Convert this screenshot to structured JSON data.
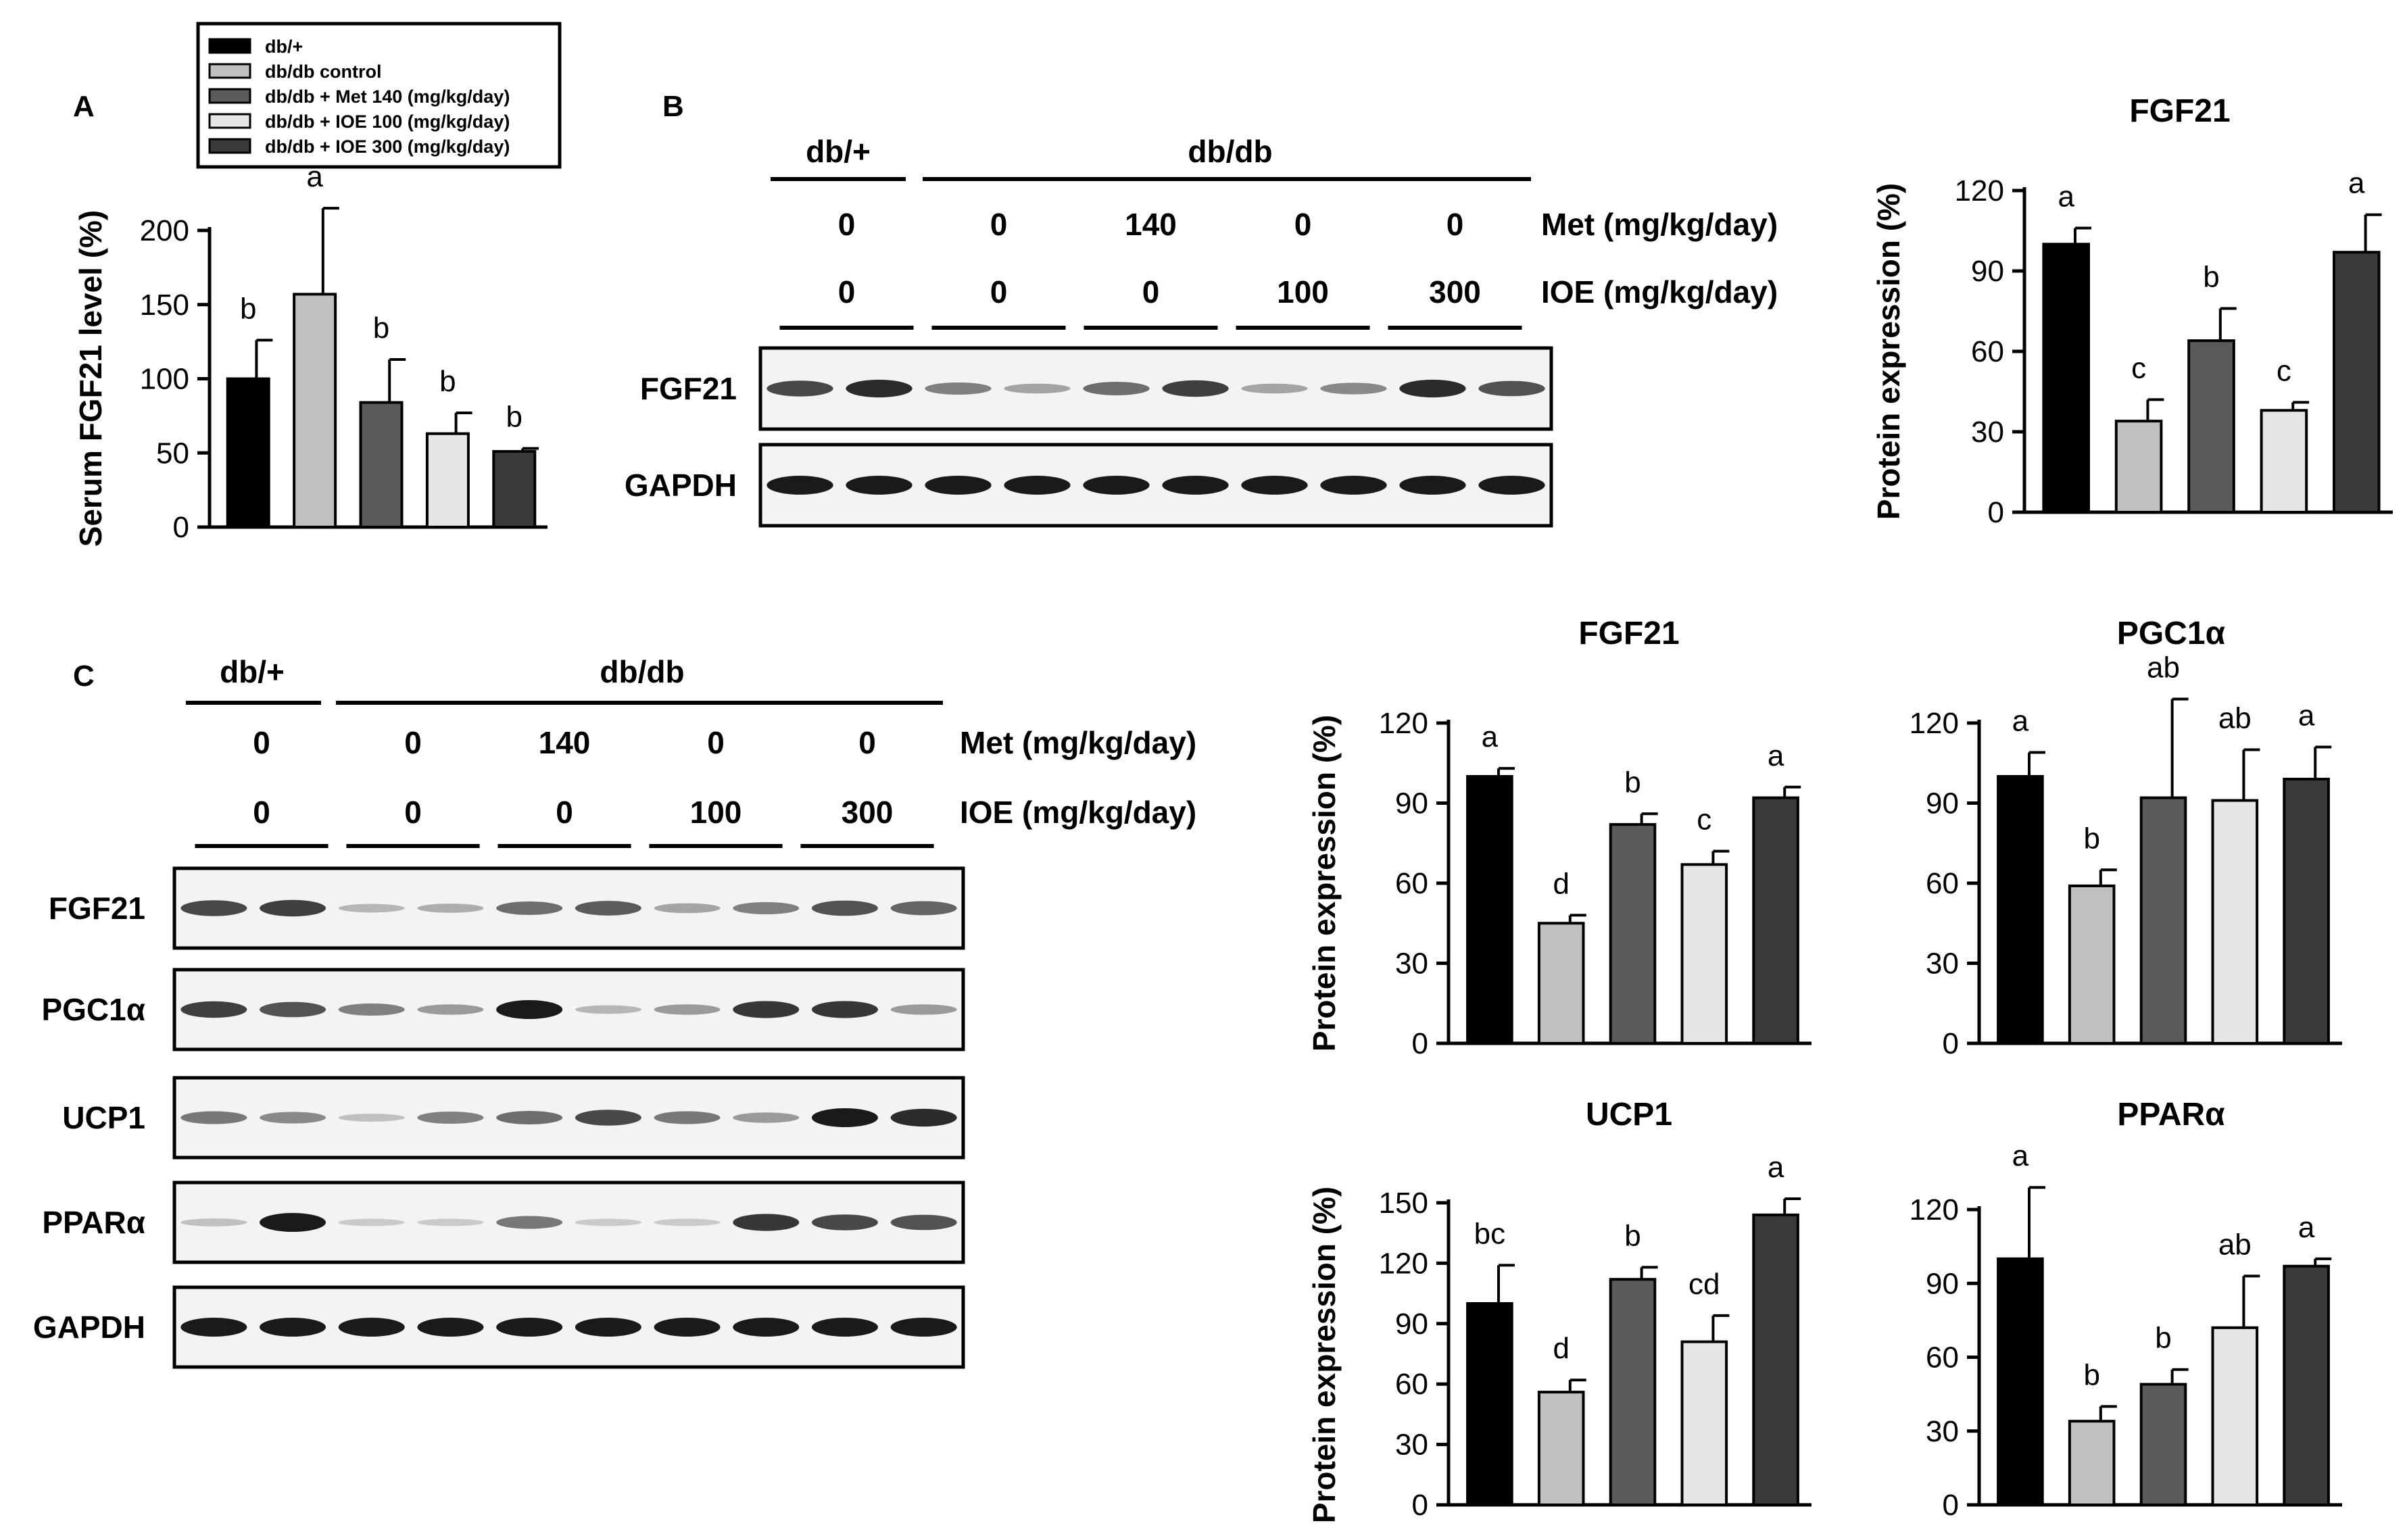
{
  "colors": {
    "g1": "#000000",
    "g2": "#c0c0c0",
    "g3": "#5a5a5a",
    "g4": "#e6e6e6",
    "g5": "#3a3a3a",
    "blot_bg": "#f3f3f3",
    "band": "#1a1a1a"
  },
  "panels": {
    "A": "A",
    "B": "B",
    "C": "C"
  },
  "legend": [
    "db/+",
    "db/db  control",
    "db/db + Met 140 (mg/kg/day)",
    "db/db + IOE  100 (mg/kg/day)",
    "db/db + IOE  300 (mg/kg/day)"
  ],
  "blots": {
    "B": {
      "group1": "db/+",
      "group2": "db/db",
      "met_values": [
        "0",
        "0",
        "140",
        "0",
        "0"
      ],
      "ioe_values": [
        "0",
        "0",
        "0",
        "100",
        "300"
      ],
      "met_label": "Met (mg/kg/day)",
      "ioe_label": "IOE (mg/kg/day)",
      "rows": [
        {
          "label": "FGF21",
          "bands": [
            0.75,
            0.9,
            0.45,
            0.25,
            0.55,
            0.8,
            0.25,
            0.4,
            0.9,
            0.7
          ]
        },
        {
          "label": "GAPDH",
          "bands": [
            1,
            1,
            1,
            1,
            1,
            1,
            1,
            1,
            1,
            1
          ]
        }
      ]
    },
    "C": {
      "group1": "db/+",
      "group2": "db/db",
      "met_values": [
        "0",
        "0",
        "140",
        "0",
        "0"
      ],
      "ioe_values": [
        "0",
        "0",
        "0",
        "100",
        "300"
      ],
      "met_label": "Met (mg/kg/day)",
      "ioe_label": "IOE (mg/kg/day)",
      "rows": [
        {
          "label": "FGF21",
          "bands": [
            0.75,
            0.8,
            0.15,
            0.2,
            0.55,
            0.65,
            0.25,
            0.45,
            0.7,
            0.6
          ]
        },
        {
          "label": "PGC1α",
          "bands": [
            0.8,
            0.7,
            0.45,
            0.3,
            1,
            0.15,
            0.3,
            0.85,
            0.85,
            0.3
          ]
        },
        {
          "label": "UCP1",
          "bands": [
            0.5,
            0.4,
            0.1,
            0.45,
            0.55,
            0.75,
            0.5,
            0.3,
            1,
            0.9
          ]
        },
        {
          "label": "PPARα",
          "bands": [
            0.1,
            1,
            0.05,
            0.05,
            0.5,
            0.05,
            0.05,
            0.85,
            0.75,
            0.7
          ]
        },
        {
          "label": "GAPDH",
          "bands": [
            1,
            1,
            1,
            1,
            1,
            1,
            1,
            1,
            1,
            1
          ]
        }
      ]
    }
  },
  "chart_data": [
    {
      "type": "bar",
      "id": "A",
      "title": "",
      "xlabel": "",
      "ylabel": "Serum FGF21 level (%)",
      "ylim": [
        0,
        200
      ],
      "yticks": [
        0,
        50,
        100,
        150,
        200
      ],
      "values": [
        100,
        157,
        84,
        63,
        51
      ],
      "errors": [
        26,
        58,
        29,
        14,
        2
      ],
      "letters": [
        "b",
        "a",
        "b",
        "b",
        "b"
      ]
    },
    {
      "type": "bar",
      "id": "B",
      "title": "FGF21",
      "xlabel": "",
      "ylabel": "Protein expression (%)",
      "ylim": [
        0,
        120
      ],
      "yticks": [
        0,
        30,
        60,
        90,
        120
      ],
      "values": [
        100,
        34,
        64,
        38,
        97
      ],
      "errors": [
        6,
        8,
        12,
        3,
        14
      ],
      "letters": [
        "a",
        "c",
        "b",
        "c",
        "a"
      ]
    },
    {
      "type": "bar",
      "id": "C1",
      "title": "FGF21",
      "xlabel": "",
      "ylabel": "Protein expression (%)",
      "ylim": [
        0,
        120
      ],
      "yticks": [
        0,
        30,
        60,
        90,
        120
      ],
      "values": [
        100,
        45,
        82,
        67,
        92
      ],
      "errors": [
        3,
        3,
        4,
        5,
        4
      ],
      "letters": [
        "a",
        "d",
        "b",
        "c",
        "a"
      ]
    },
    {
      "type": "bar",
      "id": "C2",
      "title": "PGC1α",
      "xlabel": "",
      "ylabel": "",
      "ylim": [
        0,
        120
      ],
      "yticks": [
        0,
        30,
        60,
        90,
        120
      ],
      "values": [
        100,
        59,
        92,
        91,
        99
      ],
      "errors": [
        9,
        6,
        37,
        19,
        12
      ],
      "letters": [
        "a",
        "b",
        "ab",
        "ab",
        "a"
      ]
    },
    {
      "type": "bar",
      "id": "C3",
      "title": "UCP1",
      "xlabel": "",
      "ylabel": "Protein expression (%)",
      "ylim": [
        0,
        150
      ],
      "yticks": [
        0,
        30,
        60,
        90,
        120,
        150
      ],
      "values": [
        100,
        56,
        112,
        81,
        144
      ],
      "errors": [
        19,
        6,
        6,
        13,
        8
      ],
      "letters": [
        "bc",
        "d",
        "b",
        "cd",
        "a"
      ]
    },
    {
      "type": "bar",
      "id": "C4",
      "title": "PPARα",
      "xlabel": "",
      "ylabel": "",
      "ylim": [
        0,
        120
      ],
      "yticks": [
        0,
        30,
        60,
        90,
        120
      ],
      "values": [
        100,
        34,
        49,
        72,
        97
      ],
      "errors": [
        29,
        6,
        6,
        21,
        3
      ],
      "letters": [
        "a",
        "b",
        "b",
        "ab",
        "a"
      ]
    }
  ]
}
